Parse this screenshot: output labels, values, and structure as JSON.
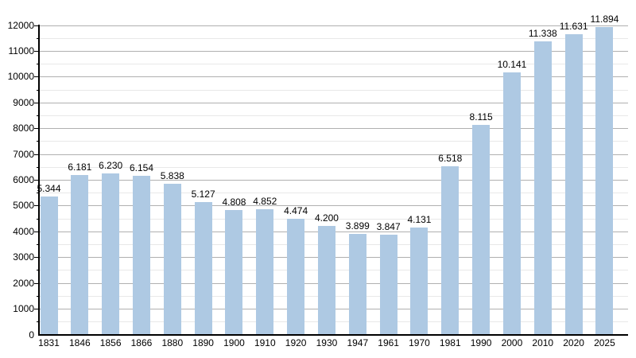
{
  "chart_data": {
    "type": "bar",
    "title": "",
    "xlabel": "",
    "ylabel": "",
    "categories": [
      "1831",
      "1846",
      "1856",
      "1866",
      "1880",
      "1890",
      "1900",
      "1910",
      "1920",
      "1930",
      "1947",
      "1961",
      "1970",
      "1981",
      "1990",
      "2000",
      "2010",
      "2020",
      "2025"
    ],
    "values": [
      5344,
      6181,
      6230,
      6154,
      5838,
      5127,
      4808,
      4852,
      4474,
      4200,
      3899,
      3847,
      4131,
      6518,
      8115,
      10141,
      11338,
      11631,
      11894
    ],
    "value_labels": [
      "5.344",
      "6.181",
      "6.230",
      "6.154",
      "5.838",
      "5.127",
      "4.808",
      "4.852",
      "4.474",
      "4.200",
      "3.899",
      "3.847",
      "4.131",
      "6.518",
      "8.115",
      "10.141",
      "11.338",
      "11.631",
      "11.894"
    ],
    "ylim": [
      0,
      12000
    ],
    "ytick_step": 1000,
    "yminor_step": 500,
    "ytick_labels": [
      "0",
      "1000",
      "2000",
      "3000",
      "4000",
      "5000",
      "6000",
      "7000",
      "8000",
      "9000",
      "10000",
      "11000",
      "12000"
    ],
    "grid": true,
    "legend": "none",
    "colors": {
      "bar_fill": "#aec9e3",
      "major_gridline": "#b0b0b0",
      "minor_gridline": "#e8e8e8",
      "axis": "#000000",
      "text": "#000000",
      "background": "#ffffff"
    }
  }
}
